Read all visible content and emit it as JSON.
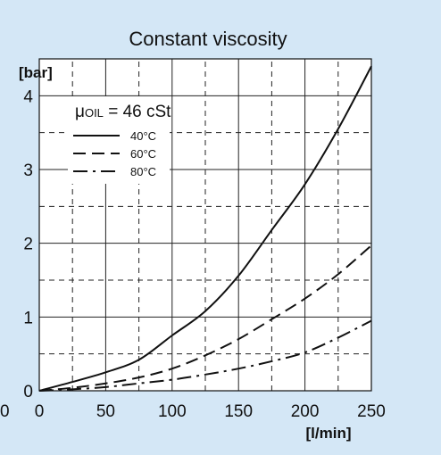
{
  "chart_data": {
    "type": "line",
    "title": "Constant viscosity",
    "ylabel": "[bar]",
    "xlabel": "[l/min]",
    "xlim": [
      0,
      250
    ],
    "ylim": [
      0,
      4.5
    ],
    "x_ticks": [
      0,
      50,
      100,
      150,
      200,
      250
    ],
    "x_tick_labels": [
      "0",
      "50",
      "100",
      "150",
      "200",
      "250"
    ],
    "y_ticks": [
      0,
      1,
      2,
      3,
      4
    ],
    "y_tick_labels": [
      "0",
      "1",
      "2",
      "3",
      "4"
    ],
    "stray_origin_label": "0",
    "grid": {
      "major": true,
      "minor_dashed": true
    },
    "legend": {
      "placement": "top-left",
      "header_mu": "μ",
      "header_sub": "OIL",
      "header_rest": " = 46 cSt"
    },
    "series": [
      {
        "name": "40°C",
        "style": "solid",
        "x": [
          0,
          25,
          50,
          75,
          100,
          125,
          150,
          175,
          200,
          225,
          250
        ],
        "y": [
          0,
          0.12,
          0.25,
          0.42,
          0.75,
          1.08,
          1.56,
          2.18,
          2.8,
          3.55,
          4.4
        ]
      },
      {
        "name": "60°C",
        "style": "dashed",
        "x": [
          0,
          25,
          50,
          75,
          100,
          125,
          150,
          175,
          200,
          225,
          250
        ],
        "y": [
          0,
          0.04,
          0.1,
          0.18,
          0.3,
          0.48,
          0.7,
          0.97,
          1.25,
          1.58,
          1.97
        ]
      },
      {
        "name": "80°C",
        "style": "dashdot",
        "x": [
          0,
          25,
          50,
          75,
          100,
          125,
          150,
          175,
          200,
          225,
          250
        ],
        "y": [
          0,
          0.02,
          0.05,
          0.1,
          0.15,
          0.22,
          0.3,
          0.4,
          0.52,
          0.72,
          0.95
        ]
      }
    ]
  }
}
